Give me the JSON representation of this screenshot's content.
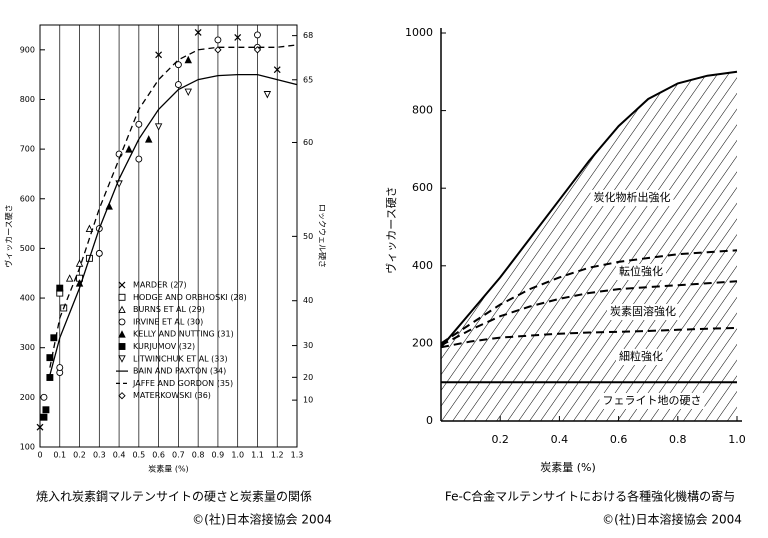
{
  "chart_data": [
    {
      "type": "scatter",
      "x_label": "炭素量 (%)",
      "y_label": "ヴィッカース硬さ",
      "y2_label": "ロックウェル硬さ",
      "xlim": [
        0,
        1.3
      ],
      "xticks": [
        0,
        0.1,
        0.2,
        0.3,
        0.4,
        0.5,
        0.6,
        0.7,
        0.8,
        0.9,
        {
          "value": 1,
          "label": "1.0"
        },
        1.1,
        1.2,
        1.3
      ],
      "ylim": [
        100,
        950
      ],
      "yticks": [
        100,
        200,
        300,
        400,
        500,
        600,
        700,
        800,
        900
      ],
      "y2ticks": [
        68,
        65,
        60,
        50,
        40,
        30,
        20,
        10
      ],
      "grid": "x",
      "series": [
        {
          "name": "MARDER (27)",
          "marker": "x",
          "color": "#000000",
          "x": [
            0,
            0.6,
            0.8,
            1,
            1.2
          ],
          "values": [
            140,
            890,
            935,
            925,
            860
          ]
        },
        {
          "name": "HODGE AND ORBHOSKI (28)",
          "marker": "square-open",
          "color": "#000000",
          "x": [
            0.1,
            0.12,
            0.2,
            0.25
          ],
          "values": [
            410,
            380,
            440,
            480
          ]
        },
        {
          "name": "BURNS ET AL (29)",
          "marker": "triangle-open",
          "color": "#000000",
          "x": [
            0.15,
            0.2,
            0.25
          ],
          "values": [
            440,
            470,
            540
          ]
        },
        {
          "name": "IRVINE ET AL (30)",
          "marker": "circle-open",
          "color": "#000000",
          "x": [
            0.02,
            0.1,
            0.1,
            0.3,
            0.3,
            0.4,
            0.5,
            0.5,
            0.7,
            0.7,
            0.9,
            1.1,
            1.1
          ],
          "values": [
            200,
            250,
            260,
            490,
            540,
            690,
            680,
            750,
            830,
            870,
            920,
            930,
            905
          ]
        },
        {
          "name": "KELLY AND NUTTING (31)",
          "marker": "triangle-filled",
          "color": "#000000",
          "x": [
            0.2,
            0.35,
            0.45,
            0.55,
            0.75
          ],
          "values": [
            430,
            585,
            700,
            720,
            880
          ]
        },
        {
          "name": "KURJUMOV (32)",
          "marker": "square-filled",
          "color": "#000000",
          "x": [
            0.02,
            0.03,
            0.05,
            0.05,
            0.07,
            0.1
          ],
          "values": [
            160,
            175,
            240,
            280,
            320,
            420
          ]
        },
        {
          "name": "LITWINCHUK ET AL (33)",
          "marker": "triangle-down-open",
          "color": "#000000",
          "x": [
            0.4,
            0.6,
            0.75,
            1.15
          ],
          "values": [
            630,
            745,
            815,
            810
          ]
        },
        {
          "name": "BAIN AND PAXTON (34)",
          "marker": "line",
          "dash": false,
          "color": "#000000",
          "x": [
            0.05,
            0.1,
            0.2,
            0.3,
            0.4,
            0.5,
            0.6,
            0.7,
            0.8,
            0.9,
            1,
            1.1,
            1.2,
            1.3
          ],
          "values": [
            245,
            320,
            420,
            540,
            640,
            720,
            780,
            820,
            840,
            848,
            850,
            850,
            840,
            830
          ]
        },
        {
          "name": "JAFFE AND GORDON (35)",
          "marker": "line",
          "dash": true,
          "color": "#000000",
          "x": [
            0.05,
            0.1,
            0.2,
            0.3,
            0.4,
            0.5,
            0.6,
            0.7,
            0.8,
            0.9,
            1,
            1.1,
            1.2,
            1.3
          ],
          "values": [
            260,
            360,
            460,
            580,
            680,
            780,
            840,
            880,
            900,
            905,
            905,
            905,
            905,
            910
          ]
        },
        {
          "name": "MATERKOWSKI (36)",
          "marker": "diamond-open",
          "color": "#000000",
          "x": [
            0.9,
            1.1
          ],
          "values": [
            900,
            900
          ]
        }
      ],
      "caption": "焼入れ炭素鋼マルテンサイトの硬さと炭素量の関係",
      "credit": "©(社)日本溶接協会 2004"
    },
    {
      "type": "line",
      "x_label": "炭素量 (%)",
      "y_label": "ヴィッカース硬さ",
      "xlim": [
        0,
        1
      ],
      "xticks": [
        0.2,
        0.4,
        0.6,
        0.8,
        {
          "value": 1,
          "label": "1.0"
        }
      ],
      "ylim": [
        0,
        1000
      ],
      "yticks": [
        0,
        200,
        400,
        600,
        800,
        1000
      ],
      "x": [
        0,
        0.1,
        0.2,
        0.3,
        0.4,
        0.5,
        0.6,
        0.7,
        0.8,
        0.9,
        1
      ],
      "series": [
        {
          "color": "#000000",
          "dash": false,
          "values": [
            190,
            280,
            370,
            470,
            570,
            670,
            760,
            830,
            870,
            890,
            900
          ]
        },
        {
          "color": "#000000",
          "dash": true,
          "values": [
            200,
            250,
            300,
            340,
            370,
            395,
            410,
            420,
            430,
            435,
            440
          ]
        },
        {
          "color": "#000000",
          "dash": true,
          "values": [
            195,
            235,
            270,
            295,
            315,
            330,
            340,
            345,
            350,
            355,
            360
          ]
        },
        {
          "color": "#000000",
          "dash": true,
          "values": [
            190,
            205,
            215,
            220,
            225,
            228,
            230,
            232,
            235,
            238,
            240
          ]
        },
        {
          "color": "#000000",
          "dash": false,
          "values": [
            100,
            100,
            100,
            100,
            100,
            100,
            100,
            100,
            100,
            100,
            100
          ]
        }
      ],
      "annotations": [
        "炭化物析出強化",
        "転位強化",
        "炭素固溶強化",
        "細粒強化",
        "フェライト地の硬さ"
      ],
      "caption": "Fe-C合金マルテンサイトにおける各種強化機構の寄与",
      "credit": "©(社)日本溶接協会 2004"
    }
  ]
}
